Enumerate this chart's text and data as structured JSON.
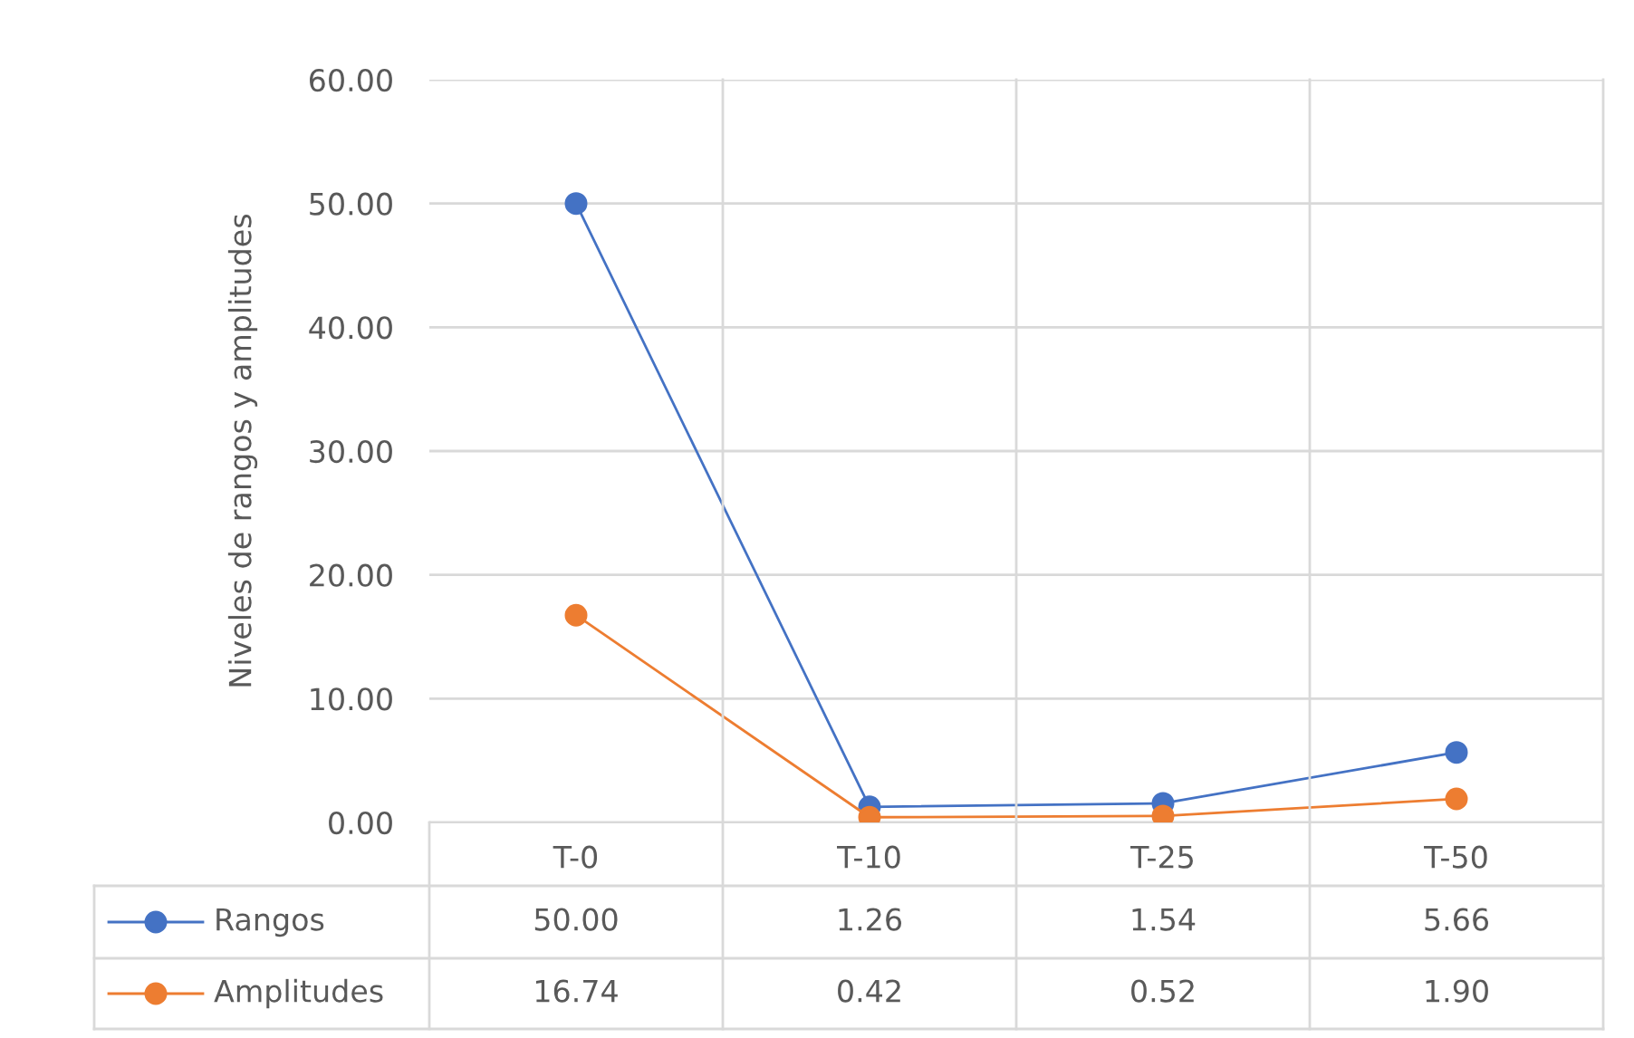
{
  "chart_data": {
    "type": "line",
    "ylabel": "Niveles de rangos y amplitudes",
    "categories": [
      "T-0",
      "T-10",
      "T-25",
      "T-50"
    ],
    "series": [
      {
        "name": "Rangos",
        "color": "#4472c4",
        "values": [
          50.0,
          1.26,
          1.54,
          5.66
        ],
        "value_labels": [
          "50.00",
          "1.26",
          "1.54",
          "5.66"
        ]
      },
      {
        "name": "Amplitudes",
        "color": "#ed7d31",
        "values": [
          16.74,
          0.42,
          0.52,
          1.9
        ],
        "value_labels": [
          "16.74",
          "0.42",
          "0.52",
          "1.90"
        ]
      }
    ],
    "ylim": [
      0,
      60
    ],
    "yticks": [
      {
        "value": 0,
        "label": "0.00"
      },
      {
        "value": 10,
        "label": "10.00"
      },
      {
        "value": 20,
        "label": "20.00"
      },
      {
        "value": 30,
        "label": "30.00"
      },
      {
        "value": 40,
        "label": "40.00"
      },
      {
        "value": 50,
        "label": "50.00"
      },
      {
        "value": 60,
        "label": "60.00"
      }
    ],
    "grid": true,
    "legend": "bottom",
    "marker": "circle",
    "line_style": "solid"
  }
}
